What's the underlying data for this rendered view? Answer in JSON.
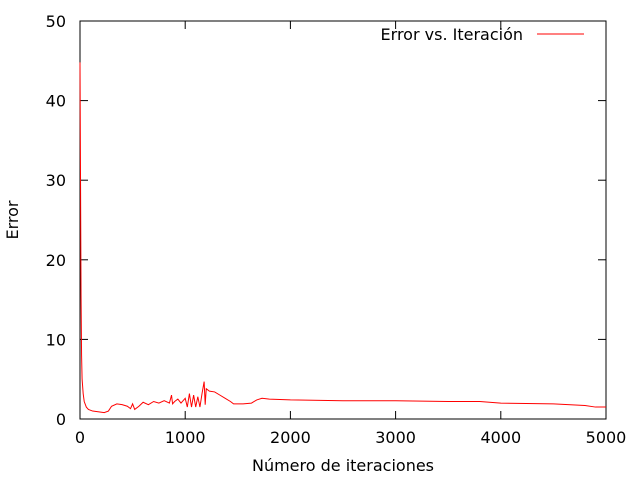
{
  "chart_data": {
    "type": "line",
    "title": "",
    "xlabel": "Número de iteraciones",
    "ylabel": "Error",
    "xlim": [
      0,
      5000
    ],
    "ylim": [
      0,
      50
    ],
    "x_ticks": [
      0,
      1000,
      2000,
      3000,
      4000,
      5000
    ],
    "y_ticks": [
      0,
      10,
      20,
      30,
      40,
      50
    ],
    "grid": false,
    "legend_position": "top-right",
    "series": [
      {
        "name": "Error vs. Iteración",
        "color": "#ff0000",
        "points": [
          [
            0,
            44.8
          ],
          [
            5,
            30
          ],
          [
            10,
            15.5
          ],
          [
            15,
            8
          ],
          [
            20,
            5
          ],
          [
            30,
            3.2
          ],
          [
            40,
            2.2
          ],
          [
            60,
            1.5
          ],
          [
            80,
            1.2
          ],
          [
            120,
            1.0
          ],
          [
            180,
            0.9
          ],
          [
            230,
            0.8
          ],
          [
            270,
            1.0
          ],
          [
            300,
            1.6
          ],
          [
            350,
            1.9
          ],
          [
            400,
            1.8
          ],
          [
            450,
            1.6
          ],
          [
            480,
            1.3
          ],
          [
            500,
            1.9
          ],
          [
            520,
            1.2
          ],
          [
            560,
            1.6
          ],
          [
            600,
            2.1
          ],
          [
            650,
            1.8
          ],
          [
            700,
            2.2
          ],
          [
            750,
            2.0
          ],
          [
            800,
            2.3
          ],
          [
            850,
            2.0
          ],
          [
            870,
            3.0
          ],
          [
            880,
            1.9
          ],
          [
            900,
            2.2
          ],
          [
            930,
            2.5
          ],
          [
            960,
            2.0
          ],
          [
            1000,
            2.6
          ],
          [
            1020,
            1.5
          ],
          [
            1040,
            3.2
          ],
          [
            1060,
            1.5
          ],
          [
            1080,
            3.0
          ],
          [
            1100,
            1.5
          ],
          [
            1120,
            2.8
          ],
          [
            1140,
            1.5
          ],
          [
            1160,
            3.2
          ],
          [
            1180,
            4.7
          ],
          [
            1190,
            1.8
          ],
          [
            1200,
            3.8
          ],
          [
            1230,
            3.5
          ],
          [
            1280,
            3.4
          ],
          [
            1330,
            3.0
          ],
          [
            1380,
            2.6
          ],
          [
            1430,
            2.2
          ],
          [
            1460,
            1.9
          ],
          [
            1550,
            1.9
          ],
          [
            1630,
            2.0
          ],
          [
            1680,
            2.4
          ],
          [
            1730,
            2.6
          ],
          [
            1800,
            2.5
          ],
          [
            2000,
            2.4
          ],
          [
            2500,
            2.3
          ],
          [
            3000,
            2.3
          ],
          [
            3500,
            2.2
          ],
          [
            3800,
            2.2
          ],
          [
            4000,
            2.0
          ],
          [
            4500,
            1.9
          ],
          [
            4800,
            1.7
          ],
          [
            4900,
            1.5
          ],
          [
            5000,
            1.5
          ]
        ]
      }
    ]
  }
}
